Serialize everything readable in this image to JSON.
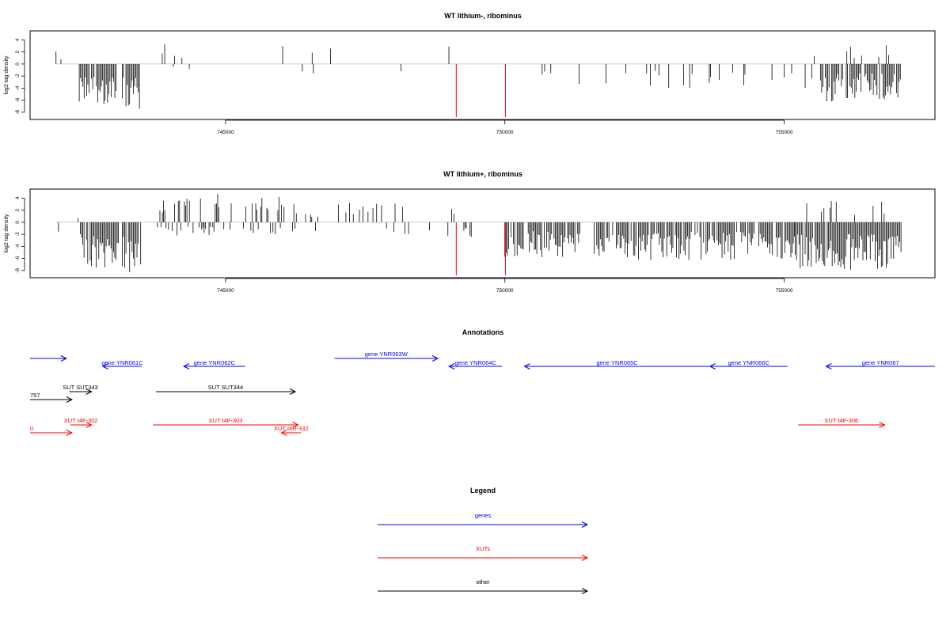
{
  "chart_data": [
    {
      "type": "bar",
      "title": "WT lithium-, ribominus",
      "ylabel": "log2 tag density",
      "xlabel": "",
      "xlim": [
        741500,
        757700
      ],
      "ylim": [
        -9.2,
        5.5
      ],
      "xticks": [
        745000,
        750000,
        755000
      ],
      "xtick_labels": [
        "745000",
        "750000",
        "755000"
      ],
      "yticks": [
        4,
        2,
        0,
        -2,
        -4,
        -6,
        -8
      ],
      "ytick_labels": [
        "4",
        "2",
        "0",
        "-2",
        "-4",
        "-6",
        "-8"
      ],
      "marker_lines": [
        {
          "x": 749130,
          "y": -8.8,
          "color": "#ff0000"
        },
        {
          "x": 750010,
          "y": -8.8,
          "color": "#ff0000"
        }
      ],
      "segments": [
        {
          "from": 741920,
          "to": 741980,
          "density": 0.2,
          "pos_amp": 2.5,
          "neg_amp": 3.5,
          "seed": 11
        },
        {
          "from": 742030,
          "to": 742060,
          "density": 0.3,
          "pos_amp": 1.5,
          "neg_amp": 0,
          "seed": 12
        },
        {
          "from": 742380,
          "to": 743060,
          "density": 0.9,
          "pos_amp": 0,
          "neg_amp": 6.8,
          "seed": 13
        },
        {
          "from": 743150,
          "to": 743500,
          "density": 0.85,
          "pos_amp": 0,
          "neg_amp": 7.5,
          "seed": 14
        },
        {
          "from": 743800,
          "to": 744500,
          "density": 0.09,
          "pos_amp": 3.4,
          "neg_amp": 1.2,
          "seed": 15
        },
        {
          "from": 744600,
          "to": 745600,
          "density": 0.04,
          "pos_amp": 2.6,
          "neg_amp": 0,
          "seed": 16
        },
        {
          "from": 746000,
          "to": 747300,
          "density": 0.09,
          "pos_amp": 3.2,
          "neg_amp": 2.8,
          "seed": 17
        },
        {
          "from": 747700,
          "to": 749400,
          "density": 0.06,
          "pos_amp": 3.0,
          "neg_amp": 2.0,
          "seed": 18
        },
        {
          "from": 750250,
          "to": 755400,
          "density": 0.08,
          "pos_amp": 0,
          "neg_amp": 4.0,
          "seed": 19
        },
        {
          "from": 755450,
          "to": 755600,
          "density": 0.3,
          "pos_amp": 3.2,
          "neg_amp": 4.5,
          "seed": 20
        },
        {
          "from": 755650,
          "to": 757100,
          "density": 0.85,
          "pos_amp": 0,
          "neg_amp": 6.2,
          "seed": 21
        },
        {
          "from": 756100,
          "to": 757080,
          "density": 0.05,
          "pos_amp": 3.3,
          "neg_amp": 0,
          "seed": 22
        }
      ]
    },
    {
      "type": "bar",
      "title": "WT lithium+, ribominus",
      "ylabel": "log2 tag density",
      "xlabel": "",
      "xlim": [
        741500,
        757700
      ],
      "ylim": [
        -9.2,
        5.5
      ],
      "xticks": [
        745000,
        750000,
        755000
      ],
      "xtick_labels": [
        "745000",
        "750000",
        "755000"
      ],
      "yticks": [
        4,
        2,
        0,
        -2,
        -4,
        -6,
        -8
      ],
      "ytick_labels": [
        "4",
        "2",
        "0",
        "-2",
        "-4",
        "-6",
        "-8"
      ],
      "marker_lines": [
        {
          "x": 749130,
          "y": -8.8,
          "color": "#ff0000"
        },
        {
          "x": 750010,
          "y": -8.8,
          "color": "#ff0000"
        }
      ],
      "segments": [
        {
          "from": 741920,
          "to": 742400,
          "density": 0.15,
          "pos_amp": 2.2,
          "neg_amp": 2.2,
          "seed": 31
        },
        {
          "from": 742400,
          "to": 743100,
          "density": 0.92,
          "pos_amp": 0,
          "neg_amp": 7.8,
          "seed": 32
        },
        {
          "from": 743150,
          "to": 743500,
          "density": 0.9,
          "pos_amp": 0,
          "neg_amp": 8.6,
          "seed": 33
        },
        {
          "from": 743780,
          "to": 746300,
          "density": 0.6,
          "pos_amp": 4.8,
          "neg_amp": 2.5,
          "seed": 34
        },
        {
          "from": 746300,
          "to": 746750,
          "density": 0.2,
          "pos_amp": 1.5,
          "neg_amp": 2.5,
          "seed": 35
        },
        {
          "from": 747000,
          "to": 749400,
          "density": 0.28,
          "pos_amp": 3.2,
          "neg_amp": 2.5,
          "seed": 36
        },
        {
          "from": 750000,
          "to": 751350,
          "density": 0.85,
          "pos_amp": 0,
          "neg_amp": 5.8,
          "seed": 37
        },
        {
          "from": 751600,
          "to": 755200,
          "density": 0.8,
          "pos_amp": 0,
          "neg_amp": 6.3,
          "seed": 38
        },
        {
          "from": 755200,
          "to": 757100,
          "density": 0.97,
          "pos_amp": 0,
          "neg_amp": 7.9,
          "seed": 39
        },
        {
          "from": 755250,
          "to": 757100,
          "density": 0.12,
          "pos_amp": 3.6,
          "neg_amp": 0,
          "seed": 40
        }
      ]
    }
  ],
  "annotations": {
    "title": "Annotations",
    "colors": {
      "genes": "#0000ff",
      "xuts": "#ff0000",
      "other": "#000000"
    },
    "features": [
      {
        "label": "",
        "start": 741500,
        "end": 742150,
        "strand": "+",
        "track": "genes"
      },
      {
        "label": "gene YNR061C",
        "start": 742800,
        "end": 743500,
        "strand": "-",
        "track": "genes"
      },
      {
        "label": "gene YNR062C",
        "start": 744250,
        "end": 745350,
        "strand": "-",
        "track": "genes"
      },
      {
        "label": "gene YNR063W",
        "start": 746950,
        "end": 748800,
        "strand": "+",
        "track": "genes"
      },
      {
        "label": "gene YNR064C",
        "start": 749000,
        "end": 749950,
        "strand": "-",
        "track": "genes"
      },
      {
        "label": "gene YNR065C",
        "start": 750350,
        "end": 753670,
        "strand": "-",
        "track": "genes"
      },
      {
        "label": "gene YNR066C",
        "start": 753670,
        "end": 755060,
        "strand": "-",
        "track": "genes"
      },
      {
        "label": "gene YNR067",
        "start": 755750,
        "end": 757700,
        "strand": "-",
        "track": "genes"
      },
      {
        "label": "SUT SUT343",
        "start": 742200,
        "end": 742600,
        "strand": "+",
        "track": "other"
      },
      {
        "label": "757",
        "start": 741500,
        "end": 742250,
        "strand": "+",
        "track": "other"
      },
      {
        "label": "SUT SUT344",
        "start": 743750,
        "end": 746250,
        "strand": "+",
        "track": "other"
      },
      {
        "label": "XUT t4F-302",
        "start": 742220,
        "end": 742600,
        "strand": "+",
        "track": "xuts"
      },
      {
        "label": "0",
        "start": 741500,
        "end": 742250,
        "strand": "+",
        "track": "xuts"
      },
      {
        "label": "XUT t4F-303",
        "start": 743700,
        "end": 746300,
        "strand": "+",
        "track": "xuts"
      },
      {
        "label": "XUT t4R-332",
        "start": 746000,
        "end": 746350,
        "strand": "-",
        "track": "xuts"
      },
      {
        "label": "XUT t4F-306",
        "start": 755250,
        "end": 756800,
        "strand": "+",
        "track": "xuts"
      }
    ]
  },
  "legend": {
    "title": "Legend",
    "items": [
      {
        "label": "genes",
        "color": "#0000ff"
      },
      {
        "label": "XUTs",
        "color": "#ff0000"
      },
      {
        "label": "other",
        "color": "#000000"
      }
    ]
  }
}
